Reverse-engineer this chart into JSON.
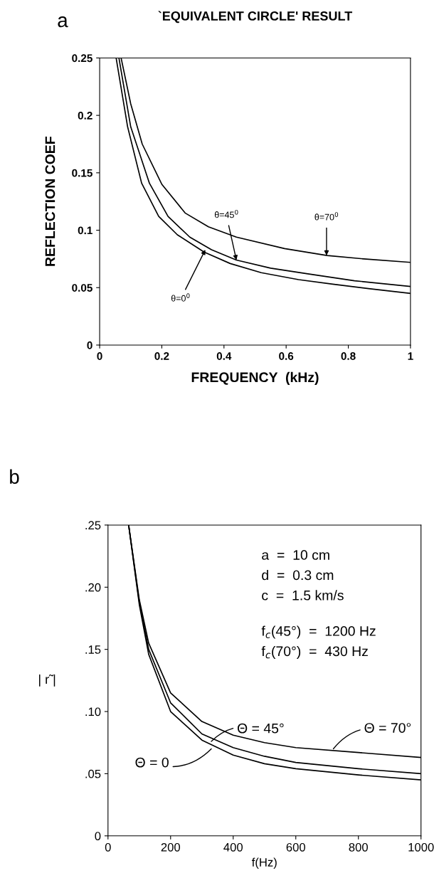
{
  "chart_data": [
    {
      "type": "line",
      "title": "`EQUIVALENT CIRCLE' RESULT",
      "xlabel": "FREQUENCY  (kHz)",
      "ylabel": "REFLECTION COEF",
      "xlim": [
        0,
        1
      ],
      "ylim": [
        0,
        0.25
      ],
      "xticks": [
        0,
        0.2,
        0.4,
        0.6,
        0.8,
        1
      ],
      "yticks": [
        0,
        0.05,
        0.1,
        0.15,
        0.2,
        0.25
      ],
      "grid": false,
      "legend": false,
      "series": [
        {
          "color": "#000000",
          "x": [
            0.069,
            0.1,
            0.137,
            0.2,
            0.275,
            0.35,
            0.44,
            0.595,
            0.732,
            0.85,
            1
          ],
          "values": [
            0.25,
            0.21,
            0.175,
            0.14,
            0.115,
            0.103,
            0.094,
            0.084,
            0.078,
            0.075,
            0.072
          ]
        },
        {
          "color": "#000000",
          "x": [
            0.062,
            0.1,
            0.16,
            0.22,
            0.29,
            0.36,
            0.44,
            0.55,
            0.67,
            0.82,
            1
          ],
          "values": [
            0.25,
            0.19,
            0.141,
            0.112,
            0.094,
            0.083,
            0.074,
            0.067,
            0.062,
            0.056,
            0.051
          ]
        },
        {
          "color": "#000000",
          "x": [
            0.053,
            0.09,
            0.135,
            0.19,
            0.25,
            0.336,
            0.42,
            0.52,
            0.64,
            0.75,
            0.87,
            1
          ],
          "values": [
            0.25,
            0.19,
            0.141,
            0.112,
            0.096,
            0.081,
            0.071,
            0.063,
            0.057,
            0.053,
            0.049,
            0.045
          ]
        }
      ],
      "annotations": [
        "a",
        {
          "text": "θ=45$^{0}$",
          "x": 0.44,
          "y": 0.074
        },
        {
          "text": "θ=70$^{0}$",
          "x": 0.73,
          "y": 0.078
        },
        {
          "text": "θ=0$^{0}$",
          "x": 0.34,
          "y": 0.083
        }
      ]
    },
    {
      "type": "line",
      "xlabel": "f(Hz)",
      "ylabel": "| r̃ |",
      "xlim": [
        0,
        1000
      ],
      "ylim": [
        0,
        0.25
      ],
      "xticks": [
        0,
        200,
        400,
        600,
        800,
        1000
      ],
      "yticks": [
        0,
        {
          "value": 0.05,
          "label": ".05"
        },
        {
          "value": 0.1,
          "label": ".10"
        },
        {
          "value": 0.15,
          "label": ".15"
        },
        {
          "value": 0.2,
          "label": ".20"
        },
        {
          "value": 0.25,
          "label": ".25"
        }
      ],
      "grid": false,
      "legend": false,
      "series": [
        {
          "color": "#000000",
          "x": [
            66,
            100,
            130,
            200,
            300,
            400,
            500,
            600,
            800,
            1000
          ],
          "values": [
            0.25,
            0.19,
            0.155,
            0.115,
            0.092,
            0.081,
            0.075,
            0.071,
            0.067,
            0.063
          ]
        },
        {
          "color": "#000000",
          "x": [
            66,
            100,
            130,
            200,
            300,
            400,
            500,
            600,
            800,
            1000
          ],
          "values": [
            0.25,
            0.188,
            0.15,
            0.107,
            0.082,
            0.071,
            0.064,
            0.059,
            0.054,
            0.05
          ]
        },
        {
          "color": "#000000",
          "x": [
            66,
            100,
            130,
            200,
            300,
            400,
            500,
            600,
            800,
            1000
          ],
          "values": [
            0.25,
            0.186,
            0.146,
            0.1,
            0.077,
            0.065,
            0.058,
            0.054,
            0.049,
            0.045
          ]
        }
      ],
      "annotations": [
        "b",
        "a  =  10 cm",
        "d  =  0.3 cm",
        "c  =  1.5 km/s",
        "f$_{c}$(45°)  =  1200 Hz",
        "f$_{c}$(70°)  =  430 Hz",
        {
          "text": "Θ = 45°",
          "x": 330,
          "y": 0.076
        },
        {
          "text": "Θ = 70°",
          "x": 720,
          "y": 0.07
        },
        {
          "text": "Θ = 0",
          "x": 330,
          "y": 0.07
        }
      ]
    }
  ]
}
